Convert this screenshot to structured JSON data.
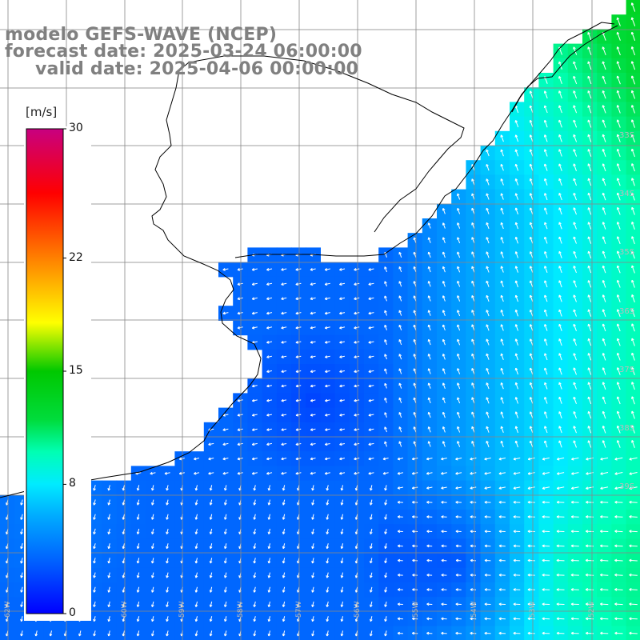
{
  "title": {
    "line1": "modelo GEFS-WAVE (NCEP)",
    "line2": "forecast date: 2025-03-24 06:00:00",
    "line3": "valid date: 2025-04-06 00:00:00"
  },
  "colorbar": {
    "unit": "[m/s]",
    "ticks": [
      "30",
      "22",
      "15",
      "8",
      "0"
    ],
    "tick_values": [
      30,
      22,
      15,
      8,
      0
    ],
    "range": [
      0,
      30
    ],
    "colors": [
      "#0000ff",
      "#00c8ff",
      "#00ffd8",
      "#00cc00",
      "#ffff00",
      "#ff8000",
      "#ff0000",
      "#c80080"
    ]
  },
  "map": {
    "lat_labels": [
      "33S",
      "34S",
      "35S",
      "36S",
      "37S",
      "38S",
      "39S"
    ],
    "lon_labels": [
      "62W",
      "61W",
      "60W",
      "59W",
      "58W",
      "57W",
      "56W",
      "55W",
      "54W",
      "53W",
      "52W"
    ],
    "land_color": "#ffffff",
    "grid_color": "#888888",
    "coast_color": "#000000"
  }
}
